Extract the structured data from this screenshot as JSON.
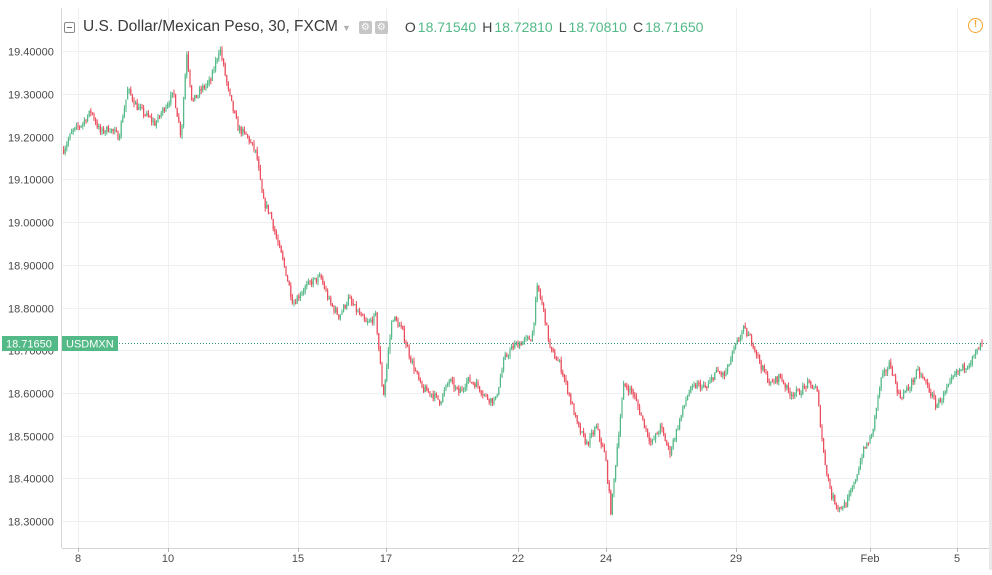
{
  "header": {
    "title": "U.S. Dollar/Mexican Peso, 30, FXCM",
    "open_label": "O",
    "open": "18.71540",
    "high_label": "H",
    "high": "18.72810",
    "low_label": "L",
    "low": "18.70810",
    "close_label": "C",
    "close": "18.71650",
    "value_color": "#53b987",
    "icons": [
      "settings-icon",
      "source-icon",
      "alert-icon"
    ]
  },
  "chart_data": {
    "type": "candlestick",
    "symbol": "USDMXN",
    "last_price": 18.7165,
    "ylim": [
      18.26,
      19.46
    ],
    "y_ticks": [
      "18.30000",
      "18.40000",
      "18.50000",
      "18.60000",
      "18.70000",
      "18.80000",
      "18.90000",
      "19.00000",
      "19.10000",
      "19.20000",
      "19.30000",
      "19.40000"
    ],
    "x_ticks": [
      "8",
      "10",
      "15",
      "17",
      "22",
      "24",
      "29",
      "Feb",
      "5"
    ],
    "grid": true,
    "up_color": "#53b987",
    "down_color": "#eb4d5c",
    "price_path": [
      [
        0.0,
        19.17
      ],
      [
        0.009,
        19.21
      ],
      [
        0.02,
        19.23
      ],
      [
        0.03,
        19.26
      ],
      [
        0.04,
        19.21
      ],
      [
        0.05,
        19.22
      ],
      [
        0.06,
        19.2
      ],
      [
        0.07,
        19.31
      ],
      [
        0.08,
        19.27
      ],
      [
        0.09,
        19.25
      ],
      [
        0.1,
        19.23
      ],
      [
        0.11,
        19.27
      ],
      [
        0.12,
        19.3
      ],
      [
        0.128,
        19.2
      ],
      [
        0.134,
        19.4
      ],
      [
        0.14,
        19.28
      ],
      [
        0.15,
        19.31
      ],
      [
        0.16,
        19.33
      ],
      [
        0.17,
        19.41
      ],
      [
        0.18,
        19.3
      ],
      [
        0.19,
        19.22
      ],
      [
        0.2,
        19.2
      ],
      [
        0.21,
        19.16
      ],
      [
        0.217,
        19.05
      ],
      [
        0.225,
        19.02
      ],
      [
        0.232,
        18.96
      ],
      [
        0.24,
        18.9
      ],
      [
        0.25,
        18.81
      ],
      [
        0.26,
        18.84
      ],
      [
        0.27,
        18.86
      ],
      [
        0.28,
        18.87
      ],
      [
        0.29,
        18.81
      ],
      [
        0.3,
        18.78
      ],
      [
        0.31,
        18.82
      ],
      [
        0.32,
        18.79
      ],
      [
        0.33,
        18.76
      ],
      [
        0.34,
        18.78
      ],
      [
        0.348,
        18.59
      ],
      [
        0.358,
        18.78
      ],
      [
        0.368,
        18.75
      ],
      [
        0.378,
        18.68
      ],
      [
        0.39,
        18.61
      ],
      [
        0.4,
        18.6
      ],
      [
        0.41,
        18.58
      ],
      [
        0.42,
        18.63
      ],
      [
        0.43,
        18.6
      ],
      [
        0.44,
        18.63
      ],
      [
        0.45,
        18.62
      ],
      [
        0.46,
        18.59
      ],
      [
        0.47,
        18.58
      ],
      [
        0.48,
        18.68
      ],
      [
        0.49,
        18.71
      ],
      [
        0.5,
        18.72
      ],
      [
        0.51,
        18.73
      ],
      [
        0.516,
        18.85
      ],
      [
        0.523,
        18.79
      ],
      [
        0.53,
        18.7
      ],
      [
        0.54,
        18.67
      ],
      [
        0.55,
        18.6
      ],
      [
        0.56,
        18.52
      ],
      [
        0.57,
        18.48
      ],
      [
        0.58,
        18.52
      ],
      [
        0.59,
        18.45
      ],
      [
        0.596,
        18.32
      ],
      [
        0.603,
        18.48
      ],
      [
        0.61,
        18.62
      ],
      [
        0.62,
        18.6
      ],
      [
        0.63,
        18.54
      ],
      [
        0.64,
        18.48
      ],
      [
        0.65,
        18.52
      ],
      [
        0.66,
        18.46
      ],
      [
        0.67,
        18.53
      ],
      [
        0.68,
        18.6
      ],
      [
        0.69,
        18.62
      ],
      [
        0.7,
        18.61
      ],
      [
        0.71,
        18.65
      ],
      [
        0.72,
        18.64
      ],
      [
        0.73,
        18.7
      ],
      [
        0.74,
        18.75
      ],
      [
        0.75,
        18.72
      ],
      [
        0.76,
        18.66
      ],
      [
        0.77,
        18.62
      ],
      [
        0.78,
        18.64
      ],
      [
        0.79,
        18.6
      ],
      [
        0.8,
        18.6
      ],
      [
        0.81,
        18.62
      ],
      [
        0.82,
        18.61
      ],
      [
        0.828,
        18.45
      ],
      [
        0.836,
        18.36
      ],
      [
        0.844,
        18.33
      ],
      [
        0.852,
        18.34
      ],
      [
        0.86,
        18.38
      ],
      [
        0.87,
        18.46
      ],
      [
        0.88,
        18.5
      ],
      [
        0.89,
        18.63
      ],
      [
        0.9,
        18.67
      ],
      [
        0.91,
        18.59
      ],
      [
        0.92,
        18.61
      ],
      [
        0.93,
        18.65
      ],
      [
        0.94,
        18.62
      ],
      [
        0.95,
        18.57
      ],
      [
        0.96,
        18.6
      ],
      [
        0.97,
        18.64
      ],
      [
        0.98,
        18.66
      ],
      [
        0.99,
        18.68
      ],
      [
        1.0,
        18.7165
      ]
    ]
  }
}
